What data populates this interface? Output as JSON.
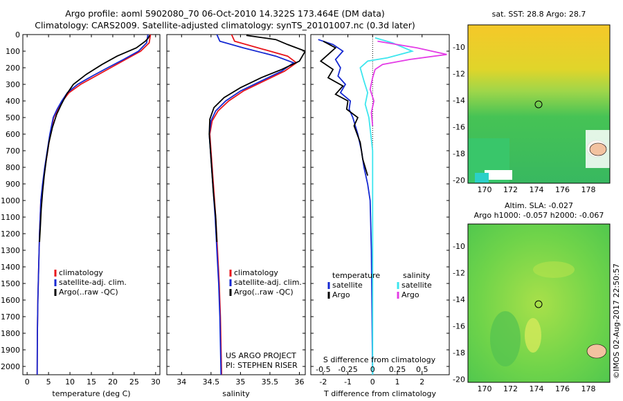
{
  "header": {
    "title_line1": "Argo profile: aoml 5902080_70 06-Oct-2010 14.322S 173.464E (DM data)",
    "title_line2": "Climatology: CARS2009. Satellite-adjusted climatology: synTS_20101007.nc (0.3d later)"
  },
  "colors": {
    "climatology": "#e8141a",
    "satellite": "#1428d2",
    "argo": "#000000",
    "sat_salinity": "#3ce6ee",
    "argo_salinity": "#e43ce6"
  },
  "chart_data": [
    {
      "type": "line",
      "name": "temperature-profile",
      "xlabel": "temperature (deg C)",
      "ylabel": "",
      "xlim": [
        -1,
        31
      ],
      "ylim": [
        2050,
        0
      ],
      "xticks": [
        0,
        5,
        10,
        15,
        20,
        25,
        30
      ],
      "yticks": [
        0,
        100,
        200,
        300,
        400,
        500,
        600,
        700,
        800,
        900,
        1000,
        1100,
        1200,
        1300,
        1400,
        1500,
        1600,
        1700,
        1800,
        1900,
        2000
      ],
      "legend": [
        "climatology",
        "satellite-adj. clim.",
        "Argo(..raw -QC)"
      ],
      "legend_position": "lower-center",
      "series": [
        {
          "name": "climatology",
          "color": "#e8141a",
          "x": [
            28.8,
            28.5,
            26.5,
            23,
            19.5,
            16,
            12.5,
            9.8,
            8.3,
            7.2,
            6.2,
            5.4,
            4.8,
            4.2,
            3.7,
            3.2,
            2.9,
            2.7,
            2.5,
            2.4,
            2.35
          ],
          "y": [
            0,
            50,
            100,
            150,
            200,
            250,
            300,
            350,
            400,
            450,
            500,
            600,
            700,
            800,
            900,
            1000,
            1200,
            1400,
            1600,
            1800,
            2050
          ]
        },
        {
          "name": "satellite-adj. clim.",
          "color": "#1428d2",
          "x": [
            28.2,
            27.9,
            26,
            22.5,
            18.8,
            15.2,
            11.8,
            9.4,
            8.1,
            7.0,
            6.1,
            5.3,
            4.7,
            4.1,
            3.6,
            3.2,
            2.9,
            2.7,
            2.5,
            2.4,
            2.35
          ],
          "y": [
            0,
            50,
            100,
            150,
            200,
            250,
            300,
            350,
            400,
            450,
            500,
            600,
            700,
            800,
            900,
            1000,
            1200,
            1400,
            1600,
            1800,
            2050
          ]
        },
        {
          "name": "Argo(..raw -QC)",
          "color": "#000000",
          "x": [
            28.6,
            28.3,
            27.6,
            25.5,
            21,
            17.5,
            13.8,
            10.8,
            9.2,
            8.0,
            6.9,
            5.9,
            5.1,
            4.5,
            4.0,
            3.6,
            3.3,
            3.1,
            2.9
          ],
          "y": [
            5,
            20,
            40,
            80,
            130,
            180,
            240,
            300,
            360,
            420,
            480,
            560,
            650,
            750,
            850,
            950,
            1050,
            1150,
            1250
          ]
        }
      ]
    },
    {
      "type": "line",
      "name": "salinity-profile",
      "xlabel": "salinity",
      "ylabel": "",
      "xlim": [
        33.75,
        36.1
      ],
      "ylim": [
        2050,
        0
      ],
      "xticks": [
        34,
        34.5,
        35,
        35.5,
        36
      ],
      "legend": [
        "climatology",
        "satellite-adj. clim.",
        "Argo(..raw -QC)"
      ],
      "legend_position": "lower-center",
      "annotations": [
        "US ARGO PROJECT",
        "PI: STEPHEN RISER"
      ],
      "series": [
        {
          "name": "climatology",
          "color": "#e8141a",
          "x": [
            34.85,
            34.9,
            35.3,
            35.8,
            35.95,
            35.75,
            35.4,
            35.05,
            34.8,
            34.62,
            34.52,
            34.48,
            34.5,
            34.52,
            34.55,
            34.58,
            34.61,
            34.64,
            34.66,
            34.68
          ],
          "y": [
            0,
            40,
            80,
            130,
            170,
            220,
            280,
            340,
            400,
            460,
            520,
            600,
            700,
            800,
            950,
            1100,
            1300,
            1500,
            1700,
            2050
          ]
        },
        {
          "name": "satellite-adj. clim.",
          "color": "#1428d2",
          "x": [
            34.6,
            34.65,
            35.05,
            35.6,
            35.9,
            35.7,
            35.35,
            35.0,
            34.75,
            34.58,
            34.5,
            34.47,
            34.49,
            34.51,
            34.54,
            34.57,
            34.6,
            34.63,
            34.65,
            34.67
          ],
          "y": [
            0,
            40,
            80,
            130,
            170,
            220,
            280,
            340,
            400,
            460,
            520,
            600,
            700,
            800,
            950,
            1100,
            1300,
            1500,
            1700,
            2050
          ]
        },
        {
          "name": "Argo(..raw -QC)",
          "color": "#000000",
          "x": [
            35.1,
            35.6,
            35.8,
            36.1,
            36.0,
            35.7,
            35.35,
            35.0,
            34.72,
            34.55,
            34.48,
            34.47,
            34.49,
            34.51,
            34.54,
            34.58,
            34.6
          ],
          "y": [
            5,
            30,
            60,
            100,
            160,
            210,
            260,
            320,
            380,
            440,
            510,
            600,
            700,
            800,
            950,
            1100,
            1250
          ]
        }
      ]
    },
    {
      "type": "line",
      "name": "difference-profile",
      "xlabel": "T difference from climatology",
      "xlabel_top": "S difference from climatology",
      "xlim": [
        -2.5,
        3.1
      ],
      "ylim": [
        2050,
        0
      ],
      "xticks": [
        -2,
        -1,
        0,
        1,
        2
      ],
      "xticks_S": [
        -0.5,
        -0.25,
        0,
        0.25,
        0.5
      ],
      "legend_temperature_title": "temperature",
      "legend_salinity_title": "salinity",
      "legend": [
        "satellite",
        "Argo",
        "satellite",
        "Argo"
      ],
      "legend_position": "lower-center",
      "series": [
        {
          "name": "temperature satellite",
          "color": "#1428d2",
          "x": [
            -2.2,
            -1.6,
            -1.2,
            -1.5,
            -1.3,
            -1.4,
            -1.1,
            -1.3,
            -0.9,
            -0.95,
            -0.8,
            -0.6,
            -0.45,
            -0.35,
            -0.2,
            -0.1,
            -0.05,
            0.0
          ],
          "y": [
            30,
            60,
            100,
            150,
            200,
            250,
            300,
            350,
            400,
            450,
            500,
            600,
            700,
            800,
            900,
            1000,
            1300,
            2050
          ]
        },
        {
          "name": "temperature Argo",
          "color": "#000000",
          "x": [
            -2.0,
            -1.5,
            -1.8,
            -2.1,
            -1.6,
            -1.8,
            -1.2,
            -1.5,
            -1.0,
            -1.05,
            -0.6,
            -0.75,
            -0.5,
            -0.4,
            -0.2
          ],
          "y": [
            40,
            80,
            120,
            160,
            210,
            260,
            310,
            360,
            400,
            450,
            500,
            550,
            650,
            750,
            850
          ]
        },
        {
          "name": "salinity satellite",
          "color": "#3ce6ee",
          "x": [
            0.1,
            0.8,
            1.6,
            0.6,
            -0.2,
            -0.5,
            -0.35,
            -0.2,
            -0.3,
            -0.15,
            0.0,
            0.0
          ],
          "y": [
            20,
            50,
            100,
            140,
            160,
            200,
            280,
            350,
            420,
            500,
            700,
            2050
          ]
        },
        {
          "name": "salinity Argo",
          "color": "#e43ce6",
          "x": [
            0.2,
            1.8,
            3.0,
            1.5,
            0.4,
            0.1,
            0.0,
            -0.1,
            0.05,
            -0.05,
            0.0
          ],
          "y": [
            40,
            80,
            120,
            150,
            180,
            210,
            260,
            330,
            400,
            470,
            550
          ]
        }
      ]
    }
  ],
  "maps": [
    {
      "title": "sat. SST: 28.8  Argo: 28.7",
      "xticks": [
        "170",
        "172",
        "174",
        "176",
        "178"
      ],
      "yticks": [
        "-10",
        "-12",
        "-14",
        "-16",
        "-18",
        "-20"
      ]
    },
    {
      "title1": "Altim. SLA: -0.027",
      "title2": "Argo h1000: -0.057 h2000: -0.067",
      "xticks": [
        "170",
        "172",
        "174",
        "176",
        "178"
      ],
      "yticks": [
        "-10",
        "-12",
        "-14",
        "-16",
        "-18",
        "-20"
      ]
    }
  ],
  "footer": {
    "stamp": "©IMOS 02-Aug-2017 22:50:57"
  }
}
